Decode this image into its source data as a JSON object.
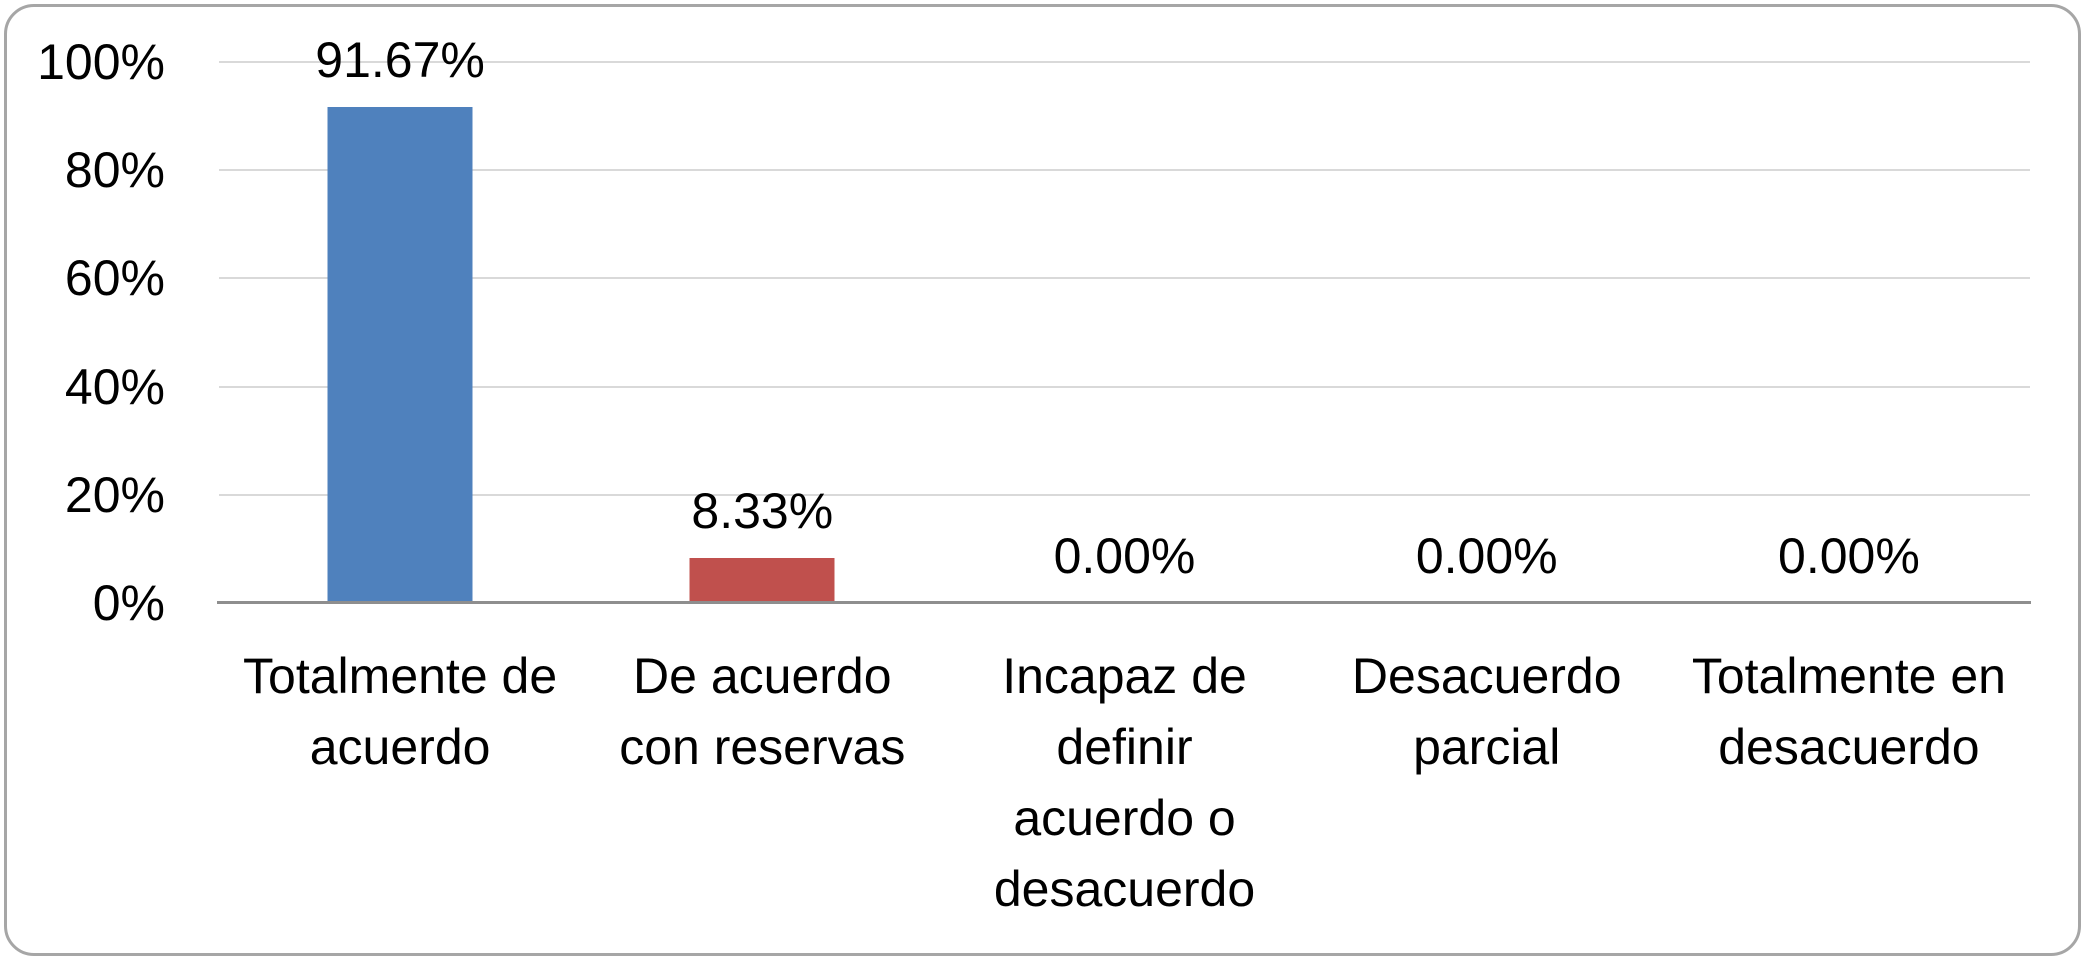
{
  "chart_data": {
    "type": "bar",
    "title": "",
    "categories": [
      "Totalmente de acuerdo",
      "De acuerdo con reservas",
      "Incapaz de definir acuerdo o desacuerdo",
      "Desacuerdo parcial",
      "Totalmente en desacuerdo"
    ],
    "categories_wrapped": [
      "Totalmente de\nacuerdo",
      "De acuerdo\ncon reservas",
      "Incapaz de\ndefinir\nacuerdo o\ndesacuerdo",
      "Desacuerdo\nparcial",
      "Totalmente en\ndesacuerdo"
    ],
    "values": [
      91.67,
      8.33,
      0,
      0,
      0
    ],
    "data_labels": [
      "91.67%",
      "8.33%",
      "0.00%",
      "0.00%",
      "0.00%"
    ],
    "y_ticks": [
      "100%",
      "80%",
      "60%",
      "40%",
      "20%",
      "0%"
    ],
    "ylim": [
      0,
      100
    ],
    "y_tick_step": 20,
    "grid": true,
    "legend": "none",
    "bar_colors": [
      "#4F81BD",
      "#C0504D",
      "#4F81BD",
      "#4F81BD",
      "#4F81BD"
    ]
  },
  "colors": {
    "bar_blue": "#4F81BD",
    "bar_red": "#C0504D",
    "gridline": "#D9D9D9",
    "axis_line": "#8E8E8E",
    "frame_border": "#A6A6A6",
    "background": "#FFFFFF",
    "text": "#000000"
  }
}
